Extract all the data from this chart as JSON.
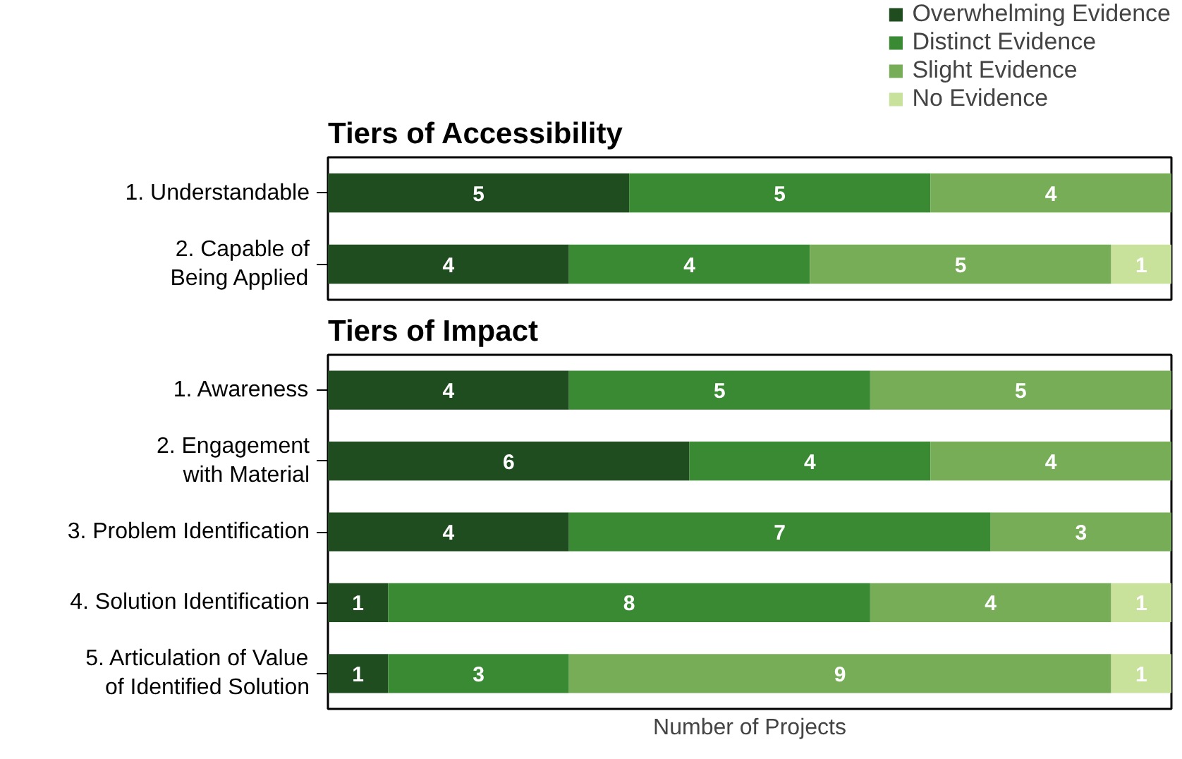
{
  "chart_data": [
    {
      "type": "bar",
      "orientation": "horizontal",
      "stacked": true,
      "title": "Tiers of Accessibility",
      "categories": [
        "1. Understandable",
        "2. Capable of\nBeing Applied"
      ],
      "xlim": [
        0,
        14
      ],
      "tick_labels": "y",
      "data_labels": true,
      "legend": "top right",
      "series": [
        {
          "name": "Overwhelming Evidence",
          "color": "#1f4d1f",
          "values": [
            5,
            4
          ]
        },
        {
          "name": "Distinct Evidence",
          "color": "#3a8a34",
          "values": [
            5,
            4
          ]
        },
        {
          "name": "Slight Evidence",
          "color": "#78ad58",
          "values": [
            4,
            5
          ]
        },
        {
          "name": "No Evidence",
          "color": "#c8e29c",
          "values": [
            null,
            1
          ]
        }
      ]
    },
    {
      "type": "bar",
      "orientation": "horizontal",
      "stacked": true,
      "title": "Tiers of Impact",
      "xlabel": "Number of Projects",
      "categories": [
        "1. Awareness",
        "2. Engagement\nwith Material",
        "3. Problem Identification",
        "4. Solution Identification",
        "5. Articulation of Value\nof Identified Solution"
      ],
      "xlim": [
        0,
        14
      ],
      "tick_labels": "y",
      "data_labels": true,
      "series": [
        {
          "color": "#1f4d1f",
          "values": [
            4,
            6,
            4,
            1,
            1
          ]
        },
        {
          "color": "#3a8a34",
          "values": [
            5,
            4,
            7,
            8,
            3
          ]
        },
        {
          "color": "#78ad58",
          "values": [
            5,
            4,
            3,
            4,
            9
          ]
        },
        {
          "color": "#c8e29c",
          "values": [
            null,
            null,
            null,
            1,
            1
          ]
        }
      ]
    }
  ]
}
